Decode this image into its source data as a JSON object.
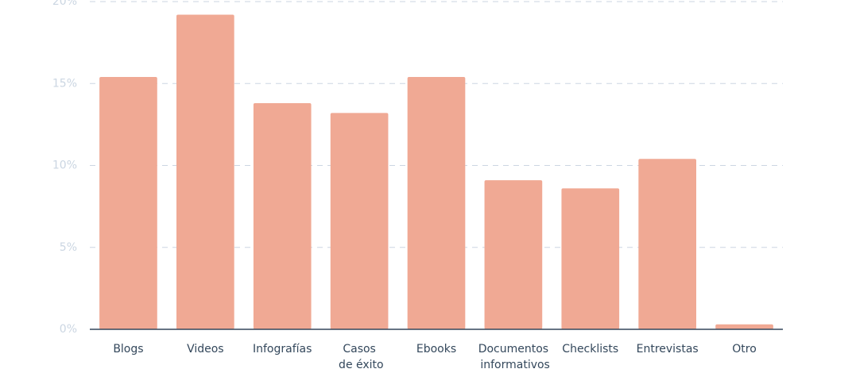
{
  "chart_data": {
    "type": "bar",
    "categories": [
      "Blogs",
      "Videos",
      "Infografías",
      "Casos de éxito",
      "Ebooks",
      "Documentos informativos",
      "Checklists",
      "Entrevistas",
      "Otro"
    ],
    "values": [
      15.4,
      19.2,
      13.8,
      13.2,
      15.4,
      9.1,
      8.6,
      10.4,
      0.3
    ],
    "color": "#f0a994",
    "ylim": [
      0,
      20
    ],
    "yticks": [
      {
        "value": 0,
        "label": "0%"
      },
      {
        "value": 5,
        "label": "5%"
      },
      {
        "value": 10,
        "label": "10%"
      },
      {
        "value": 15,
        "label": "15%"
      },
      {
        "value": 20,
        "label": "20%"
      }
    ],
    "grid": true
  }
}
